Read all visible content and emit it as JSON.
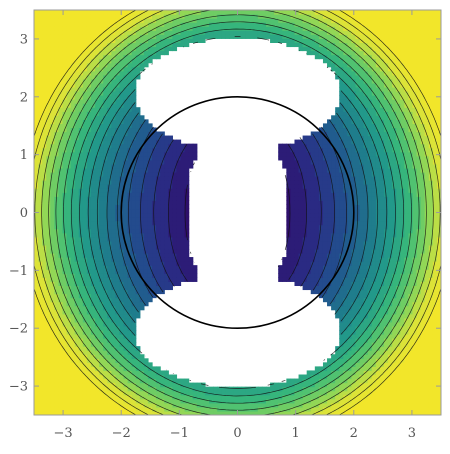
{
  "chart_data": {
    "type": "contour",
    "title": "",
    "xlabel": "",
    "ylabel": "",
    "xlim": [
      -3.5,
      3.5
    ],
    "ylim": [
      -3.5,
      3.5
    ],
    "x_ticks": [
      -3,
      -2,
      -1,
      0,
      1,
      2,
      3
    ],
    "y_ticks": [
      -3,
      -2,
      -1,
      0,
      1,
      2,
      3
    ],
    "x_tick_labels": [
      "−3",
      "−2",
      "−1",
      "0",
      "1",
      "2",
      "3"
    ],
    "y_tick_labels": [
      "−3",
      "−2",
      "−1",
      "0",
      "1",
      "2",
      "3"
    ],
    "color_scheme": [
      "#2e0f6b",
      "#2a2d86",
      "#21548f",
      "#1f7a8c",
      "#22998a",
      "#39b97a",
      "#7ed35e",
      "#d9e33a",
      "#f2e62a"
    ],
    "unfilled_regions": [
      {
        "shape": "lobe",
        "x": [
          -1.8,
          1.8
        ],
        "y": [
          1.1,
          3.0
        ]
      },
      {
        "shape": "lobe",
        "x": [
          -1.8,
          1.8
        ],
        "y": [
          -3.0,
          -1.1
        ]
      },
      {
        "shape": "central hourglass",
        "x": [
          -0.8,
          0.8
        ],
        "y": [
          -1.2,
          1.2
        ]
      }
    ],
    "darkest_regions": [
      {
        "x": [
          -2.0,
          -0.5
        ],
        "y": [
          -1.1,
          1.1
        ]
      },
      {
        "x": [
          0.5,
          2.0
        ],
        "y": [
          -1.1,
          1.1
        ]
      }
    ],
    "overlay_circle": {
      "center": [
        0,
        0
      ],
      "radius": 2.0,
      "color": "#000000"
    },
    "grid": false,
    "legend": "none"
  }
}
